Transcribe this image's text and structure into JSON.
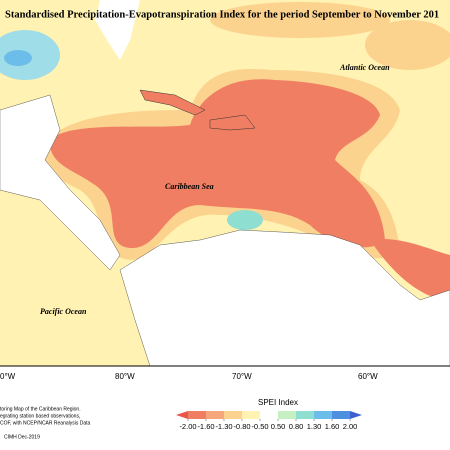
{
  "title": "Standardised Precipitation-Evapotranspiration Index for the period September to November 201",
  "labels": {
    "atlantic": "Atlantic Ocean",
    "caribbean": "Caribbean Sea",
    "pacific": "Pacific Ocean"
  },
  "longitudes": [
    "0°W",
    "80°W",
    "70°W",
    "60°W"
  ],
  "legend": {
    "title": "SPEI Index",
    "ticks": [
      {
        "value": -2,
        "label": "-2.00"
      },
      {
        "value": -1.6,
        "label": "-1.60"
      },
      {
        "value": -1.3,
        "label": "-1.30"
      },
      {
        "value": -0.8,
        "label": "-0.80"
      },
      {
        "value": -0.5,
        "label": "-0.50"
      },
      {
        "value": 0.5,
        "label": "0.50"
      },
      {
        "value": 0.8,
        "label": "0.80"
      },
      {
        "value": 1.3,
        "label": "1.30"
      },
      {
        "value": 1.6,
        "label": "1.60"
      },
      {
        "value": 2,
        "label": "2.00"
      }
    ],
    "colors": [
      "#e8574a",
      "#f07e62",
      "#f6a67a",
      "#fbd28e",
      "#fff2b2",
      "#ffffff",
      "#c6efc2",
      "#8fded2",
      "#6cbde9",
      "#4f8fe0",
      "#3f60d0"
    ]
  },
  "footnote": [
    "toring Map of the Caribbean Region.",
    "egrating station based observations,",
    "COF, with NCEP/NCAR Reanalysis Data"
  ],
  "credit": "CIMH Dec-2019"
}
